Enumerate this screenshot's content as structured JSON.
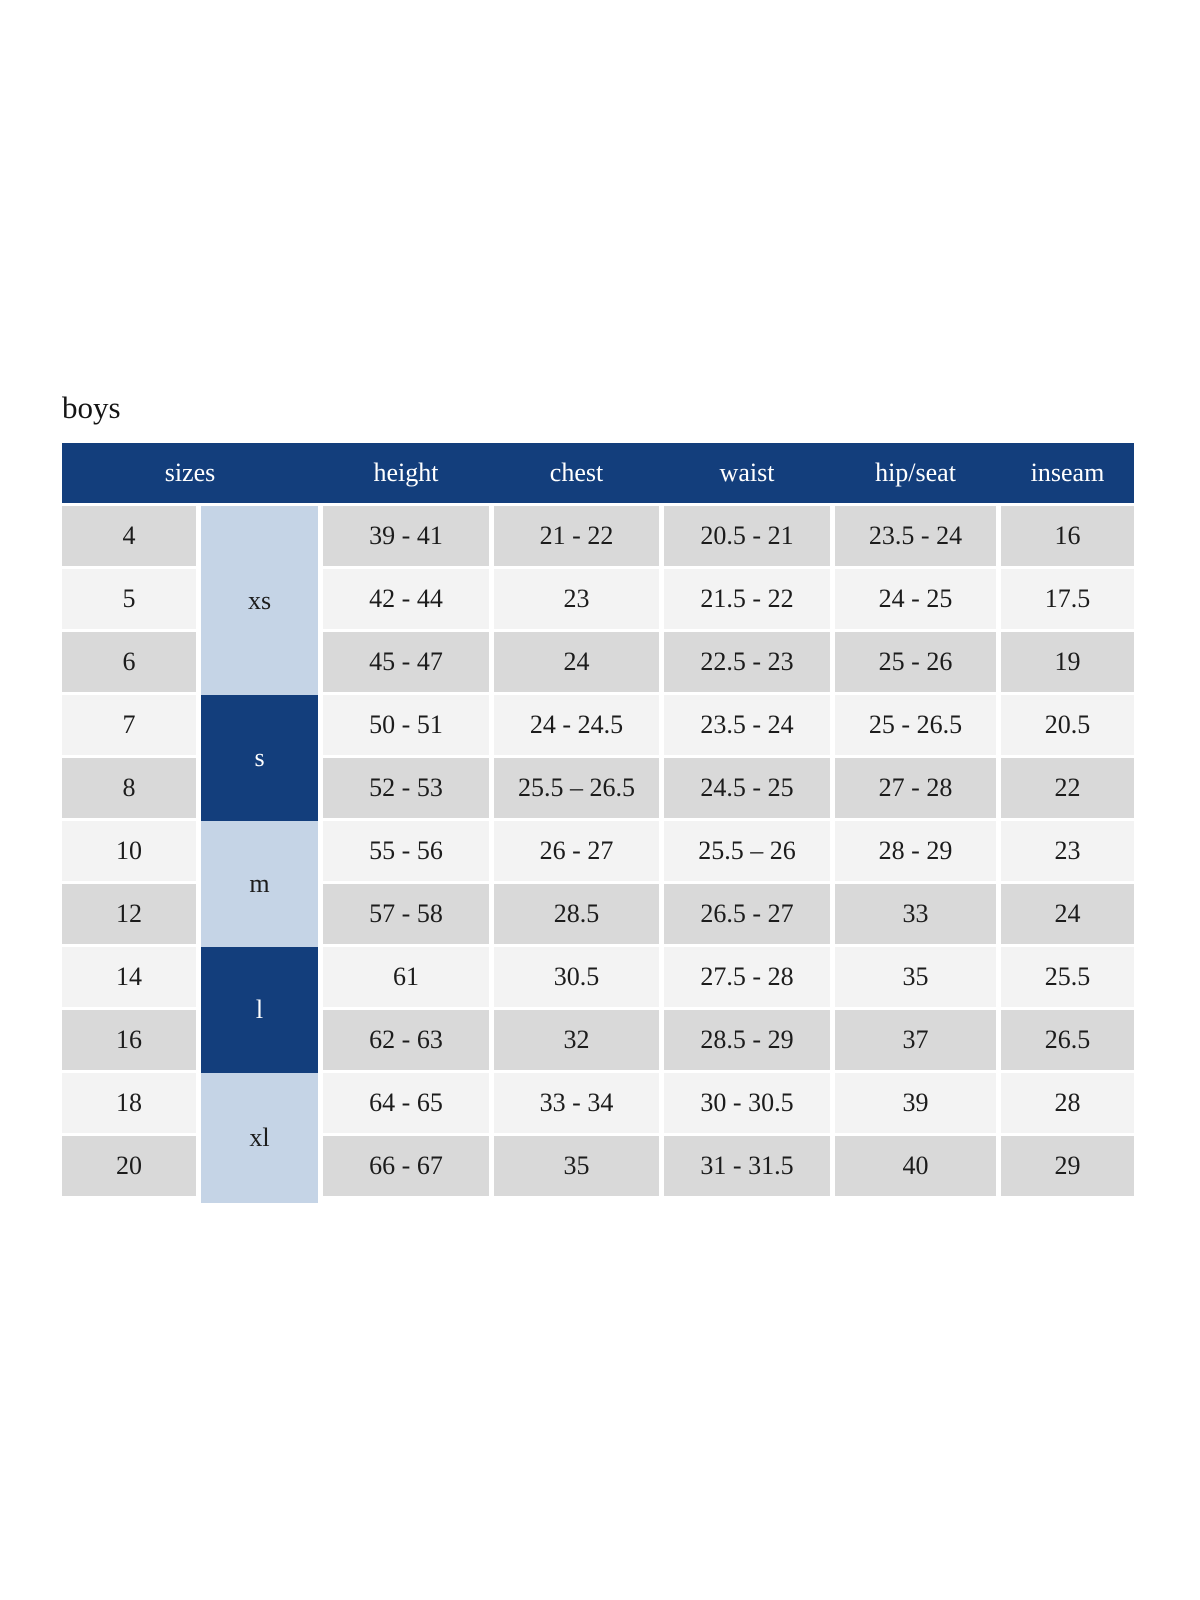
{
  "page": {
    "title": "boys"
  },
  "colors": {
    "header_navy": "#133e7c",
    "group_light_blue": "#c5d4e6",
    "row_band_dark": "#d9d9d9",
    "row_band_light": "#f3f3f3",
    "header_text": "#ffffff",
    "body_text": "#1c1c1c"
  },
  "table": {
    "headers": {
      "sizes": "sizes",
      "height": "height",
      "chest": "chest",
      "waist": "waist",
      "hip_seat": "hip/seat",
      "inseam": "inseam"
    },
    "groups": [
      {
        "label": "xs",
        "rows_spanned": 3,
        "tone": "light"
      },
      {
        "label": "s",
        "rows_spanned": 2,
        "tone": "dark"
      },
      {
        "label": "m",
        "rows_spanned": 2,
        "tone": "light"
      },
      {
        "label": "l",
        "rows_spanned": 2,
        "tone": "dark"
      },
      {
        "label": "xl",
        "rows_spanned": 2,
        "tone": "light"
      }
    ],
    "rows": [
      {
        "size": "4",
        "group": "xs",
        "height": "39 - 41",
        "chest": "21 - 22",
        "waist": "20.5 - 21",
        "hip_seat": "23.5 - 24",
        "inseam": "16"
      },
      {
        "size": "5",
        "group": "xs",
        "height": "42 - 44",
        "chest": "23",
        "waist": "21.5 - 22",
        "hip_seat": "24 - 25",
        "inseam": "17.5"
      },
      {
        "size": "6",
        "group": "xs",
        "height": "45 - 47",
        "chest": "24",
        "waist": "22.5 - 23",
        "hip_seat": "25 - 26",
        "inseam": "19"
      },
      {
        "size": "7",
        "group": "s",
        "height": "50 - 51",
        "chest": "24 - 24.5",
        "waist": "23.5 - 24",
        "hip_seat": "25 - 26.5",
        "inseam": "20.5"
      },
      {
        "size": "8",
        "group": "s",
        "height": "52 - 53",
        "chest": "25.5 – 26.5",
        "waist": "24.5 - 25",
        "hip_seat": "27 - 28",
        "inseam": "22"
      },
      {
        "size": "10",
        "group": "m",
        "height": "55 - 56",
        "chest": "26 - 27",
        "waist": "25.5 – 26",
        "hip_seat": "28 - 29",
        "inseam": "23"
      },
      {
        "size": "12",
        "group": "m",
        "height": "57 - 58",
        "chest": "28.5",
        "waist": "26.5 - 27",
        "hip_seat": "33",
        "inseam": "24"
      },
      {
        "size": "14",
        "group": "l",
        "height": "61",
        "chest": "30.5",
        "waist": "27.5 - 28",
        "hip_seat": "35",
        "inseam": "25.5"
      },
      {
        "size": "16",
        "group": "l",
        "height": "62 - 63",
        "chest": "32",
        "waist": "28.5 - 29",
        "hip_seat": "37",
        "inseam": "26.5"
      },
      {
        "size": "18",
        "group": "xl",
        "height": "64 - 65",
        "chest": "33 - 34",
        "waist": "30 - 30.5",
        "hip_seat": "39",
        "inseam": "28"
      },
      {
        "size": "20",
        "group": "xl",
        "height": "66 - 67",
        "chest": "35",
        "waist": "31 - 31.5",
        "hip_seat": "40",
        "inseam": "29"
      }
    ]
  }
}
